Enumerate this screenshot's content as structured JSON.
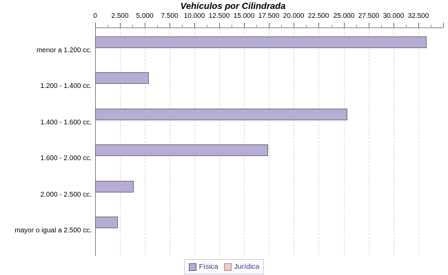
{
  "title": "Vehículos por Cilindrada",
  "chart_data": {
    "type": "bar",
    "orientation": "horizontal",
    "title": "Vehículos por Cilindrada",
    "categories": [
      "menor a 1.200 cc.",
      "1.200 - 1.400 cc.",
      "1.400 - 1.600 cc.",
      "1.600 - 2.000 cc.",
      "2.000 - 2.500 cc.",
      "mayor o igual a 2.500 cc."
    ],
    "series": [
      {
        "name": "Física",
        "fill": "#b6acd6",
        "border": "#707070",
        "swatch_border": "#5c5c8a",
        "values": [
          33350,
          5400,
          25400,
          17400,
          3890,
          2260
        ]
      },
      {
        "name": "Jurídica",
        "fill": "#f9c8c8",
        "border": "#a98a8a",
        "swatch_border": "#a98a8a",
        "values": [
          0,
          0,
          0,
          0,
          0,
          0
        ]
      }
    ],
    "x_axis": {
      "min": 0,
      "max": 35000,
      "tick_interval": 2500,
      "minor_tick_interval": 1250,
      "tick_labels": [
        "0",
        "2.500",
        "5.000",
        "7.500",
        "10.000",
        "12.500",
        "15.000",
        "17.500",
        "20.000",
        "22.500",
        "25.000",
        "27.500",
        "30.000",
        "32.500"
      ]
    },
    "grid": "vertical-dashed-at-major-ticks",
    "legend_position": "bottom-center"
  },
  "colors": {
    "axis": "#808080",
    "gridline": "#d9d9d9",
    "title_text": "#000000",
    "label_text": "#000000",
    "legend_text": "#3b2c8a",
    "legend_border": "#ccccdd",
    "background": "#ffffff"
  }
}
